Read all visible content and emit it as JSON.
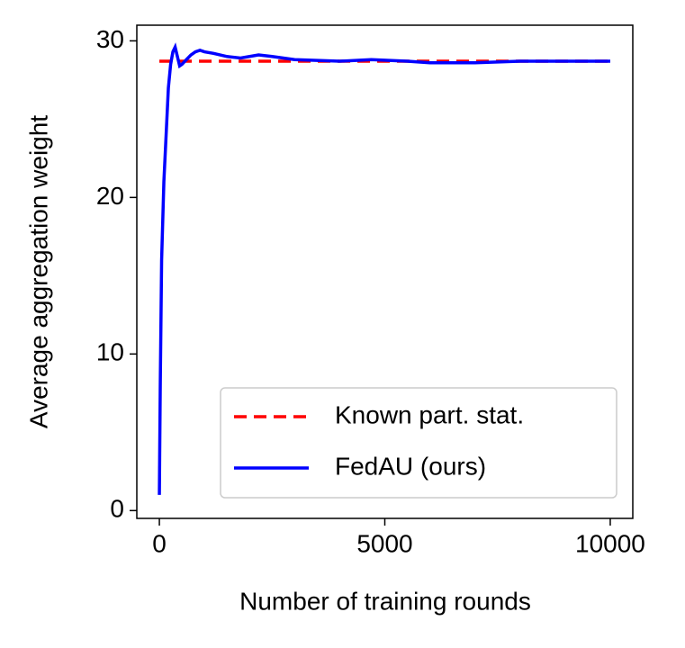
{
  "chart_data": {
    "type": "line",
    "x_label": "Number of training rounds",
    "y_label": "Average aggregation weight",
    "xlim": [
      -500,
      10500
    ],
    "xticks": [
      0,
      5000,
      10000
    ],
    "ylim": [
      -0.5,
      31
    ],
    "yticks": [
      0,
      10,
      20,
      30
    ],
    "legend": "lower right",
    "series": [
      {
        "name": "Known part. stat.",
        "color": "#ff0000",
        "dash": true,
        "x": [
          0,
          10000
        ],
        "values": [
          28.7,
          28.7
        ]
      },
      {
        "name": "FedAU (ours)",
        "color": "#0000ff",
        "dash": false,
        "x": [
          0,
          20,
          50,
          100,
          150,
          200,
          250,
          300,
          350,
          400,
          450,
          500,
          600,
          700,
          800,
          900,
          1000,
          1200,
          1500,
          1800,
          2200,
          2500,
          3000,
          4000,
          4700,
          5500,
          6000,
          7000,
          8000,
          9000,
          10000
        ],
        "values": [
          1,
          8,
          16,
          21,
          24,
          27,
          28.5,
          29.3,
          29.6,
          29.0,
          28.4,
          28.5,
          28.8,
          29.1,
          29.3,
          29.4,
          29.3,
          29.2,
          29.0,
          28.9,
          29.1,
          29.0,
          28.8,
          28.7,
          28.8,
          28.7,
          28.6,
          28.6,
          28.7,
          28.7,
          28.7
        ]
      }
    ]
  }
}
